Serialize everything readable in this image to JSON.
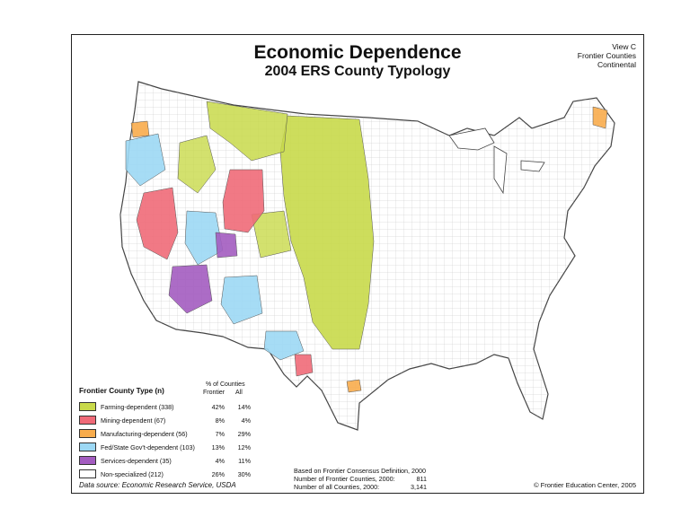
{
  "title": "Economic Dependence",
  "subtitle": "2004 ERS County Typology",
  "view_box": [
    "View C",
    "Frontier Counties",
    "Continental"
  ],
  "legend": {
    "title": "Frontier County Type (n)",
    "header_top": "% of Counties",
    "header_frontier": "Frontier",
    "header_all": "All",
    "items": [
      {
        "label": "Farming-dependent (338)",
        "color": "#c8d94a",
        "frontier": "42%",
        "all": "14%"
      },
      {
        "label": "Mining-dependent (67)",
        "color": "#f06a78",
        "frontier": "8%",
        "all": "4%"
      },
      {
        "label": "Manufacturing-dependent (56)",
        "color": "#f8ac4c",
        "frontier": "7%",
        "all": "29%"
      },
      {
        "label": "Fed/State Gov't-dependent (103)",
        "color": "#9cd8f4",
        "frontier": "13%",
        "all": "12%"
      },
      {
        "label": "Services-dependent (35)",
        "color": "#a35cc0",
        "frontier": "4%",
        "all": "11%"
      },
      {
        "label": "Non-specialized (212)",
        "color": "#ffffff",
        "frontier": "26%",
        "all": "30%"
      }
    ]
  },
  "source": "Data source: Economic Research Service, USDA",
  "notes": {
    "line1": "Based on Frontier Consensus Definition, 2000",
    "line2_label": "Number of Frontier Counties, 2000:",
    "line2_value": "811",
    "line3_label": "Number of all Counties, 2000:",
    "line3_value": "3,141"
  },
  "copyright": "© Frontier Education Center, 2005",
  "colors": {
    "farming": "#c8d94a",
    "mining": "#f06a78",
    "manufacturing": "#f8ac4c",
    "government": "#9cd8f4",
    "services": "#a35cc0",
    "nonspecialized": "#ffffff",
    "outline": "#555555"
  }
}
